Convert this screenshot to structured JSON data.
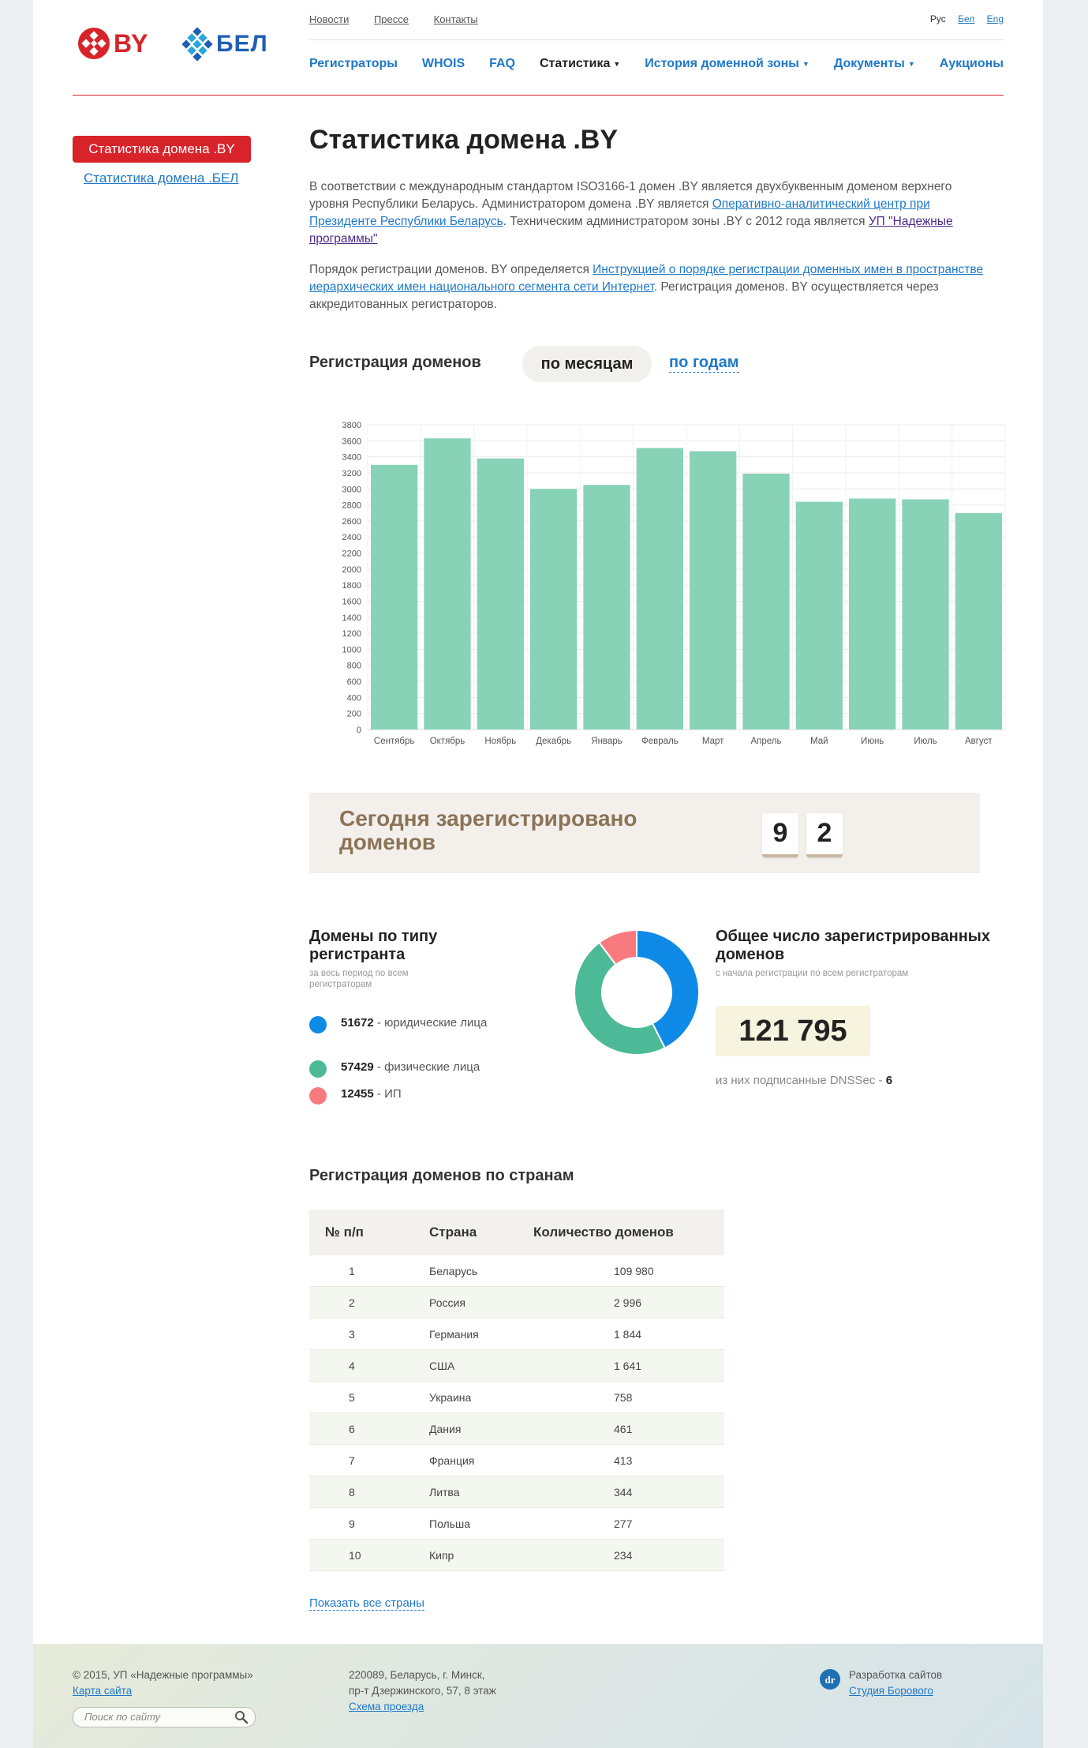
{
  "header": {
    "logo_by": "BY",
    "logo_bel": "БЕЛ",
    "top_links": [
      "Новости",
      "Прессе",
      "Контакты"
    ],
    "langs": {
      "current": "Рус",
      "links": [
        "Бел",
        "Eng"
      ]
    },
    "nav": [
      {
        "label": "Регистраторы",
        "dropdown": false,
        "active": false
      },
      {
        "label": "WHOIS",
        "dropdown": false,
        "active": false
      },
      {
        "label": "FAQ",
        "dropdown": false,
        "active": false
      },
      {
        "label": "Статистика",
        "dropdown": true,
        "active": true
      },
      {
        "label": "История доменной зоны",
        "dropdown": true,
        "active": false
      },
      {
        "label": "Документы",
        "dropdown": true,
        "active": false
      },
      {
        "label": "Аукционы",
        "dropdown": false,
        "active": false
      }
    ]
  },
  "sidebar": {
    "active": "Статистика домена .BY",
    "link": "Статистика домена .БЕЛ"
  },
  "page_title": "Статистика домена .BY",
  "intro": {
    "p1_t1": "В соответствии с международным стандартом ISO3166-1 домен .BY является двухбуквенным доменом верхнего уровня Республики Беларусь. Администратором домена .BY является ",
    "p1_link1": "Оперативно-аналитический центр при Президенте Республики Беларусь",
    "p1_t2": ". Техническим администратором зоны .BY с 2012 года является ",
    "p1_link2": "УП \"Надежные программы\"",
    "p2_t1": "Порядок регистрации доменов. BY определяется ",
    "p2_link": "Инструкцией о порядке регистрации доменных имен в пространстве иерархических имен национального сегмента сети Интернет",
    "p2_t2": ". Регистрация доменов. BY осуществляется через аккредитованных регистраторов."
  },
  "registration": {
    "title": "Регистрация доменов",
    "tab_months": "по месяцам",
    "tab_years": "по годам"
  },
  "chart_data": {
    "type": "bar",
    "categories": [
      "Сентябрь",
      "Октябрь",
      "Ноябрь",
      "Декабрь",
      "Январь",
      "Февраль",
      "Март",
      "Апрель",
      "Май",
      "Июнь",
      "Июль",
      "Август"
    ],
    "values": [
      3300,
      3630,
      3380,
      3000,
      3050,
      3510,
      3470,
      3190,
      2840,
      2880,
      2870,
      2700
    ],
    "ylim": [
      0,
      3800
    ],
    "yticks": [
      0,
      200,
      400,
      600,
      800,
      1000,
      1200,
      1400,
      1600,
      1800,
      2000,
      2200,
      2400,
      2600,
      2800,
      3000,
      3200,
      3400,
      3600,
      3800
    ],
    "grid": true,
    "color": "#88d3b7"
  },
  "today": {
    "label": "Сегодня зарегистрировано доменов",
    "digits": [
      "9",
      "2"
    ]
  },
  "types": {
    "title": "Домены по типу регистранта",
    "subtitle": "за весь период по всем регистраторам",
    "items": [
      {
        "value": "51672",
        "label": "юридические лица",
        "color": "#0f8ae6",
        "num": 51672
      },
      {
        "value": "57429",
        "label": "физические лица",
        "color": "#4cba96",
        "num": 57429
      },
      {
        "value": "12455",
        "label": "ИП",
        "color": "#f97a7e",
        "num": 12455
      }
    ]
  },
  "total": {
    "title": "Общее число зарегистрированных доменов",
    "subtitle": "с начала регистрации по всем регистраторам",
    "value": "121 795",
    "dnssec_label": "из них подписанные DNSSec - ",
    "dnssec_value": "6"
  },
  "countries": {
    "title": "Регистрация доменов по странам",
    "headers": [
      "№ п/п",
      "Страна",
      "Количество доменов"
    ],
    "rows": [
      [
        "1",
        "Беларусь",
        "109 980"
      ],
      [
        "2",
        "Россия",
        "2 996"
      ],
      [
        "3",
        "Германия",
        "1 844"
      ],
      [
        "4",
        "США",
        "1 641"
      ],
      [
        "5",
        "Украина",
        "758"
      ],
      [
        "6",
        "Дания",
        "461"
      ],
      [
        "7",
        "Франция",
        "413"
      ],
      [
        "8",
        "Литва",
        "344"
      ],
      [
        "9",
        "Польша",
        "277"
      ],
      [
        "10",
        "Кипр",
        "234"
      ]
    ],
    "show_all": "Показать все страны"
  },
  "footer": {
    "copyright": "© 2015, УП «Надежные программы»",
    "sitemap": "Карта сайта",
    "address1": "220089, Беларусь, г. Минск,",
    "address2": "пр-т Дзержинского, 57, 8 этаж",
    "route": "Схема проезда",
    "dev_label": "Разработка сайтов",
    "dev_link": "Студия Борового",
    "search_placeholder": "Поиск по сайту"
  }
}
